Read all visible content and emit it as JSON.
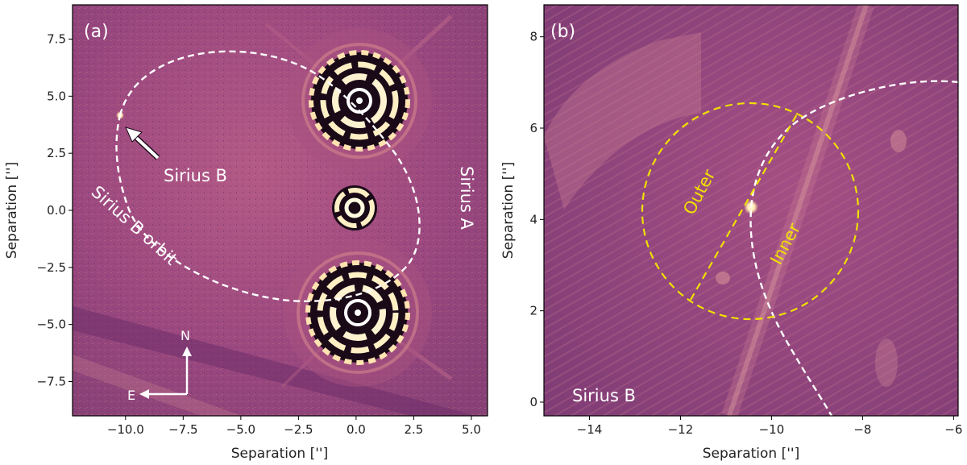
{
  "panels": [
    {
      "id": "a",
      "panel_label": "(a)",
      "xlabel": "Separation ['']",
      "ylabel": "Separation ['']",
      "xlim": [
        -12.3,
        5.7
      ],
      "ylim": [
        -9.0,
        9.0
      ],
      "xticks": [
        -10.0,
        -7.5,
        -5.0,
        -2.5,
        0.0,
        2.5,
        5.0
      ],
      "xtick_labels": [
        "−10.0",
        "−7.5",
        "−5.0",
        "−2.5",
        "0.0",
        "2.5",
        "5.0"
      ],
      "yticks": [
        7.5,
        5.0,
        2.5,
        0.0,
        -2.5,
        -5.0,
        -7.5
      ],
      "ytick_labels": [
        "7.5",
        "5.0",
        "2.5",
        "0.0",
        "−2.5",
        "−5.0",
        "−7.5"
      ],
      "annotations": {
        "sirius_b": "Sirius B",
        "sirius_b_orbit": "Sirius B orbit",
        "sirius_a": "Sirius A",
        "north": "N",
        "east": "E"
      }
    },
    {
      "id": "b",
      "panel_label": "(b)",
      "xlabel": "Separation ['']",
      "ylabel": "Separation ['']",
      "xlim": [
        -15.0,
        -5.9
      ],
      "ylim": [
        -0.3,
        8.7
      ],
      "xticks": [
        -14,
        -12,
        -10,
        -8,
        -6
      ],
      "xtick_labels": [
        "−14",
        "−12",
        "−10",
        "−8",
        "−6"
      ],
      "yticks": [
        8,
        6,
        4,
        2,
        0
      ],
      "ytick_labels": [
        "8",
        "6",
        "4",
        "2",
        "0"
      ],
      "annotations": {
        "sirius_b": "Sirius B",
        "outer": "Outer",
        "inner": "Inner"
      }
    }
  ],
  "colors": {
    "background_image": "#9e4a82",
    "orbit_line": "#ffffff",
    "region_line": "#f0e000"
  }
}
